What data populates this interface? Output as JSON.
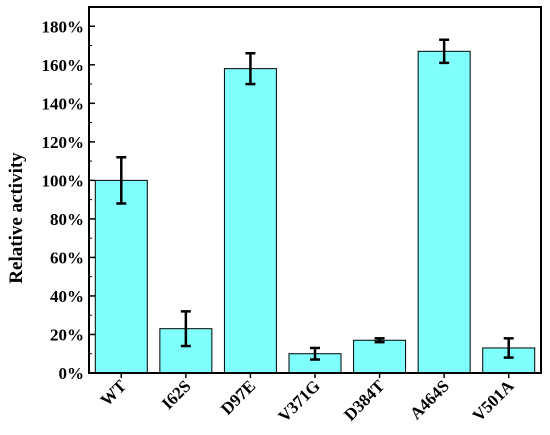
{
  "chart_data": {
    "type": "bar",
    "title": "",
    "xlabel": "",
    "ylabel": "Relative activity",
    "categories": [
      "WT",
      "I62S",
      "D97E",
      "V371G",
      "D384T",
      "A464S",
      "V501A"
    ],
    "values": [
      100,
      23,
      158,
      10,
      17,
      167,
      13
    ],
    "error": [
      12,
      9,
      8,
      3,
      1,
      6,
      5
    ],
    "ylim": [
      0,
      190
    ],
    "yticks": [
      0,
      20,
      40,
      60,
      80,
      100,
      120,
      140,
      160,
      180
    ],
    "ytick_labels": [
      "0%",
      "20%",
      "40%",
      "60%",
      "80%",
      "100%",
      "120%",
      "140%",
      "160%",
      "180%"
    ],
    "bar_color": "#80ffff",
    "grid": false,
    "legend": "none"
  }
}
